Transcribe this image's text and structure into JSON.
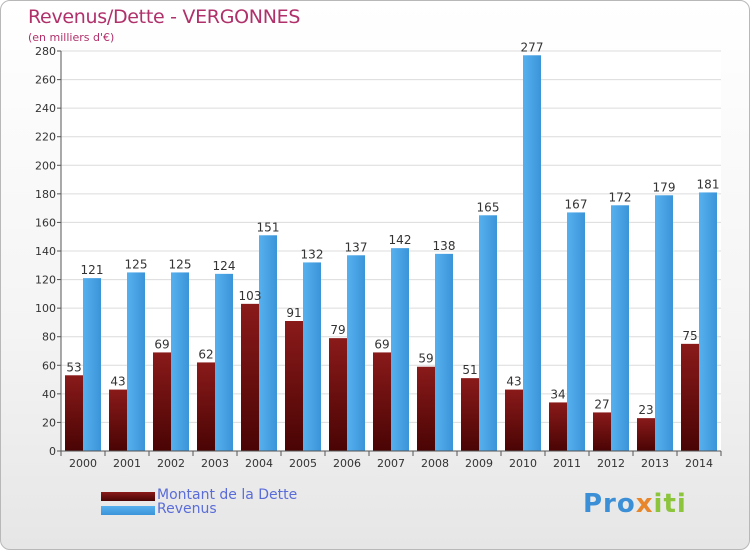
{
  "chart_data": {
    "type": "bar",
    "title": "Revenus/Dette - VERGONNES",
    "subtitle": "(en milliers d'€)",
    "categories": [
      "2000",
      "2001",
      "2002",
      "2003",
      "2004",
      "2005",
      "2006",
      "2007",
      "2008",
      "2009",
      "2010",
      "2011",
      "2012",
      "2013",
      "2014"
    ],
    "series": [
      {
        "name": "Montant de la Dette",
        "color": "#6b0a0a",
        "values": [
          53,
          43,
          69,
          62,
          103,
          91,
          79,
          69,
          59,
          51,
          43,
          34,
          27,
          23,
          75
        ]
      },
      {
        "name": "Revenus",
        "color": "#3d9ce0",
        "values": [
          121,
          125,
          125,
          124,
          151,
          132,
          137,
          142,
          138,
          165,
          277,
          167,
          172,
          179,
          181
        ]
      }
    ],
    "ylim": [
      0,
      280
    ],
    "yticks": [
      0,
      20,
      40,
      60,
      80,
      100,
      120,
      140,
      160,
      180,
      200,
      220,
      240,
      260,
      280
    ],
    "grid": true,
    "legend": "bottom-left"
  },
  "logo": {
    "part1": "Pro",
    "part2": "x",
    "part3": "iti"
  }
}
